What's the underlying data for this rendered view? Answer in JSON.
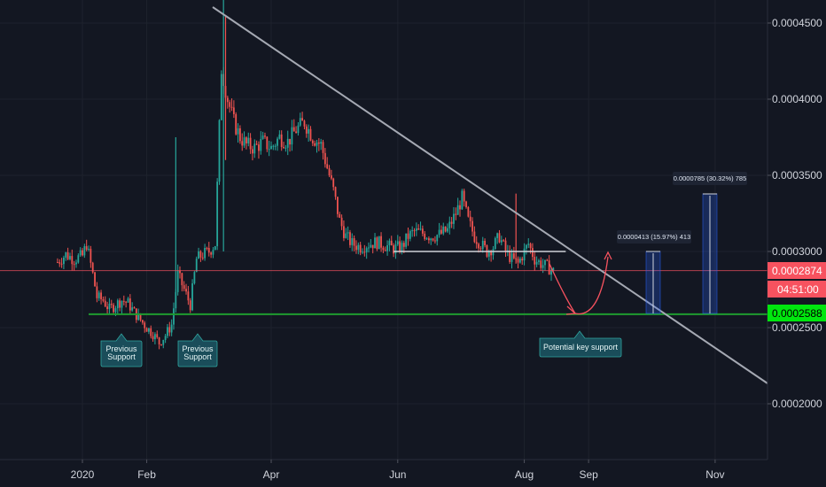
{
  "chart_data": {
    "type": "candlestick",
    "y_axis": {
      "ticks": [
        {
          "value": 0.00045,
          "label": "0.0004500"
        },
        {
          "value": 0.0004,
          "label": "0.0004000"
        },
        {
          "value": 0.00035,
          "label": "0.0003500"
        },
        {
          "value": 0.0003,
          "label": "0.0003000"
        },
        {
          "value": 0.00025,
          "label": "0.0002500"
        },
        {
          "value": 0.0002,
          "label": "0.0002000"
        }
      ],
      "ylim": [
        0.000162,
        0.000475
      ]
    },
    "x_axis": {
      "ticks": [
        {
          "date": "2020-01-01",
          "label": "2020"
        },
        {
          "date": "2020-02-01",
          "label": "Feb"
        },
        {
          "date": "2020-04-01",
          "label": "Apr"
        },
        {
          "date": "2020-06-01",
          "label": "Jun"
        },
        {
          "date": "2020-08-01",
          "label": "Aug"
        },
        {
          "date": "2020-09-01",
          "label": "Sep"
        },
        {
          "date": "2020-11-01",
          "label": "Nov"
        }
      ]
    },
    "price_badges": {
      "current_price": "0.0002874",
      "countdown": "04:51:00",
      "support_price": "0.0002588"
    },
    "close_series": [
      {
        "date": "2019-12-20",
        "close": 0.000293
      },
      {
        "date": "2019-12-24",
        "close": 0.000298
      },
      {
        "date": "2019-12-28",
        "close": 0.000295
      },
      {
        "date": "2020-01-01",
        "close": 0.000297
      },
      {
        "date": "2020-01-03",
        "close": 0.000305
      },
      {
        "date": "2020-01-06",
        "close": 0.000285
      },
      {
        "date": "2020-01-08",
        "close": 0.00027
      },
      {
        "date": "2020-01-11",
        "close": 0.000268
      },
      {
        "date": "2020-01-14",
        "close": 0.000262
      },
      {
        "date": "2020-01-17",
        "close": 0.000265
      },
      {
        "date": "2020-01-20",
        "close": 0.000268
      },
      {
        "date": "2020-01-23",
        "close": 0.000266
      },
      {
        "date": "2020-01-26",
        "close": 0.00026
      },
      {
        "date": "2020-01-29",
        "close": 0.000255
      },
      {
        "date": "2020-02-01",
        "close": 0.00025
      },
      {
        "date": "2020-02-04",
        "close": 0.000246
      },
      {
        "date": "2020-02-07",
        "close": 0.00024
      },
      {
        "date": "2020-02-10",
        "close": 0.000245
      },
      {
        "date": "2020-02-13",
        "close": 0.000252
      },
      {
        "date": "2020-02-16",
        "close": 0.000285
      },
      {
        "date": "2020-02-19",
        "close": 0.000275
      },
      {
        "date": "2020-02-22",
        "close": 0.000265
      },
      {
        "date": "2020-02-25",
        "close": 0.000295
      },
      {
        "date": "2020-02-28",
        "close": 0.000298
      },
      {
        "date": "2020-03-02",
        "close": 0.0003
      },
      {
        "date": "2020-03-05",
        "close": 0.000305
      },
      {
        "date": "2020-03-08",
        "close": 0.00042
      },
      {
        "date": "2020-03-11",
        "close": 0.0004
      },
      {
        "date": "2020-03-14",
        "close": 0.000385
      },
      {
        "date": "2020-03-17",
        "close": 0.000375
      },
      {
        "date": "2020-03-20",
        "close": 0.00037
      },
      {
        "date": "2020-03-24",
        "close": 0.000368
      },
      {
        "date": "2020-03-28",
        "close": 0.000372
      },
      {
        "date": "2020-04-01",
        "close": 0.000368
      },
      {
        "date": "2020-04-05",
        "close": 0.000375
      },
      {
        "date": "2020-04-09",
        "close": 0.000372
      },
      {
        "date": "2020-04-13",
        "close": 0.00038
      },
      {
        "date": "2020-04-17",
        "close": 0.000385
      },
      {
        "date": "2020-04-21",
        "close": 0.000375
      },
      {
        "date": "2020-04-25",
        "close": 0.00037
      },
      {
        "date": "2020-04-28",
        "close": 0.000355
      },
      {
        "date": "2020-05-01",
        "close": 0.00034
      },
      {
        "date": "2020-05-04",
        "close": 0.00032
      },
      {
        "date": "2020-05-07",
        "close": 0.00031
      },
      {
        "date": "2020-05-10",
        "close": 0.000305
      },
      {
        "date": "2020-05-14",
        "close": 0.000303
      },
      {
        "date": "2020-05-18",
        "close": 0.000305
      },
      {
        "date": "2020-05-22",
        "close": 0.000306
      },
      {
        "date": "2020-05-26",
        "close": 0.000304
      },
      {
        "date": "2020-05-30",
        "close": 0.000302
      },
      {
        "date": "2020-06-03",
        "close": 0.000303
      },
      {
        "date": "2020-06-06",
        "close": 0.00031
      },
      {
        "date": "2020-06-09",
        "close": 0.000313
      },
      {
        "date": "2020-06-13",
        "close": 0.000312
      },
      {
        "date": "2020-06-17",
        "close": 0.00031
      },
      {
        "date": "2020-06-21",
        "close": 0.000311
      },
      {
        "date": "2020-06-25",
        "close": 0.000314
      },
      {
        "date": "2020-06-29",
        "close": 0.000325
      },
      {
        "date": "2020-07-02",
        "close": 0.000335
      },
      {
        "date": "2020-07-05",
        "close": 0.00032
      },
      {
        "date": "2020-07-08",
        "close": 0.00031
      },
      {
        "date": "2020-07-11",
        "close": 0.000305
      },
      {
        "date": "2020-07-14",
        "close": 0.0003
      },
      {
        "date": "2020-07-17",
        "close": 0.000303
      },
      {
        "date": "2020-07-20",
        "close": 0.00031
      },
      {
        "date": "2020-07-23",
        "close": 0.0003
      },
      {
        "date": "2020-07-26",
        "close": 0.000295
      },
      {
        "date": "2020-07-29",
        "close": 0.000292
      },
      {
        "date": "2020-08-01",
        "close": 0.0003
      },
      {
        "date": "2020-08-03",
        "close": 0.000305
      },
      {
        "date": "2020-08-06",
        "close": 0.000295
      },
      {
        "date": "2020-08-09",
        "close": 0.000292
      },
      {
        "date": "2020-08-12",
        "close": 0.00029
      },
      {
        "date": "2020-08-15",
        "close": 0.000287
      }
    ],
    "horizontal_lines": [
      {
        "value": 0.0002874,
        "label": "current-price-line"
      },
      {
        "value": 0.0002588,
        "label": "key-support-line"
      }
    ],
    "resistance_segment": {
      "value": 0.0003,
      "from": "2020-05-30",
      "to": "2020-08-21"
    },
    "annotations": {
      "previous_support_1": "Previous\nSupport",
      "previous_support_2": "Previous\nSupport",
      "potential_key_support": "Potential key support",
      "measure_1": "0.0000413 (15.97%) 413",
      "measure_2": "0.0000785 (30.32%) 785"
    },
    "colors": {
      "background": "#131722",
      "bull": "#26a69a",
      "bear": "#ef5350",
      "support_line": "#1e9b2f",
      "support_badge": "#00e60e",
      "price_badge": "#f7525f",
      "trendline": "#a5a9b3",
      "callout": "#1a4d5a"
    }
  }
}
